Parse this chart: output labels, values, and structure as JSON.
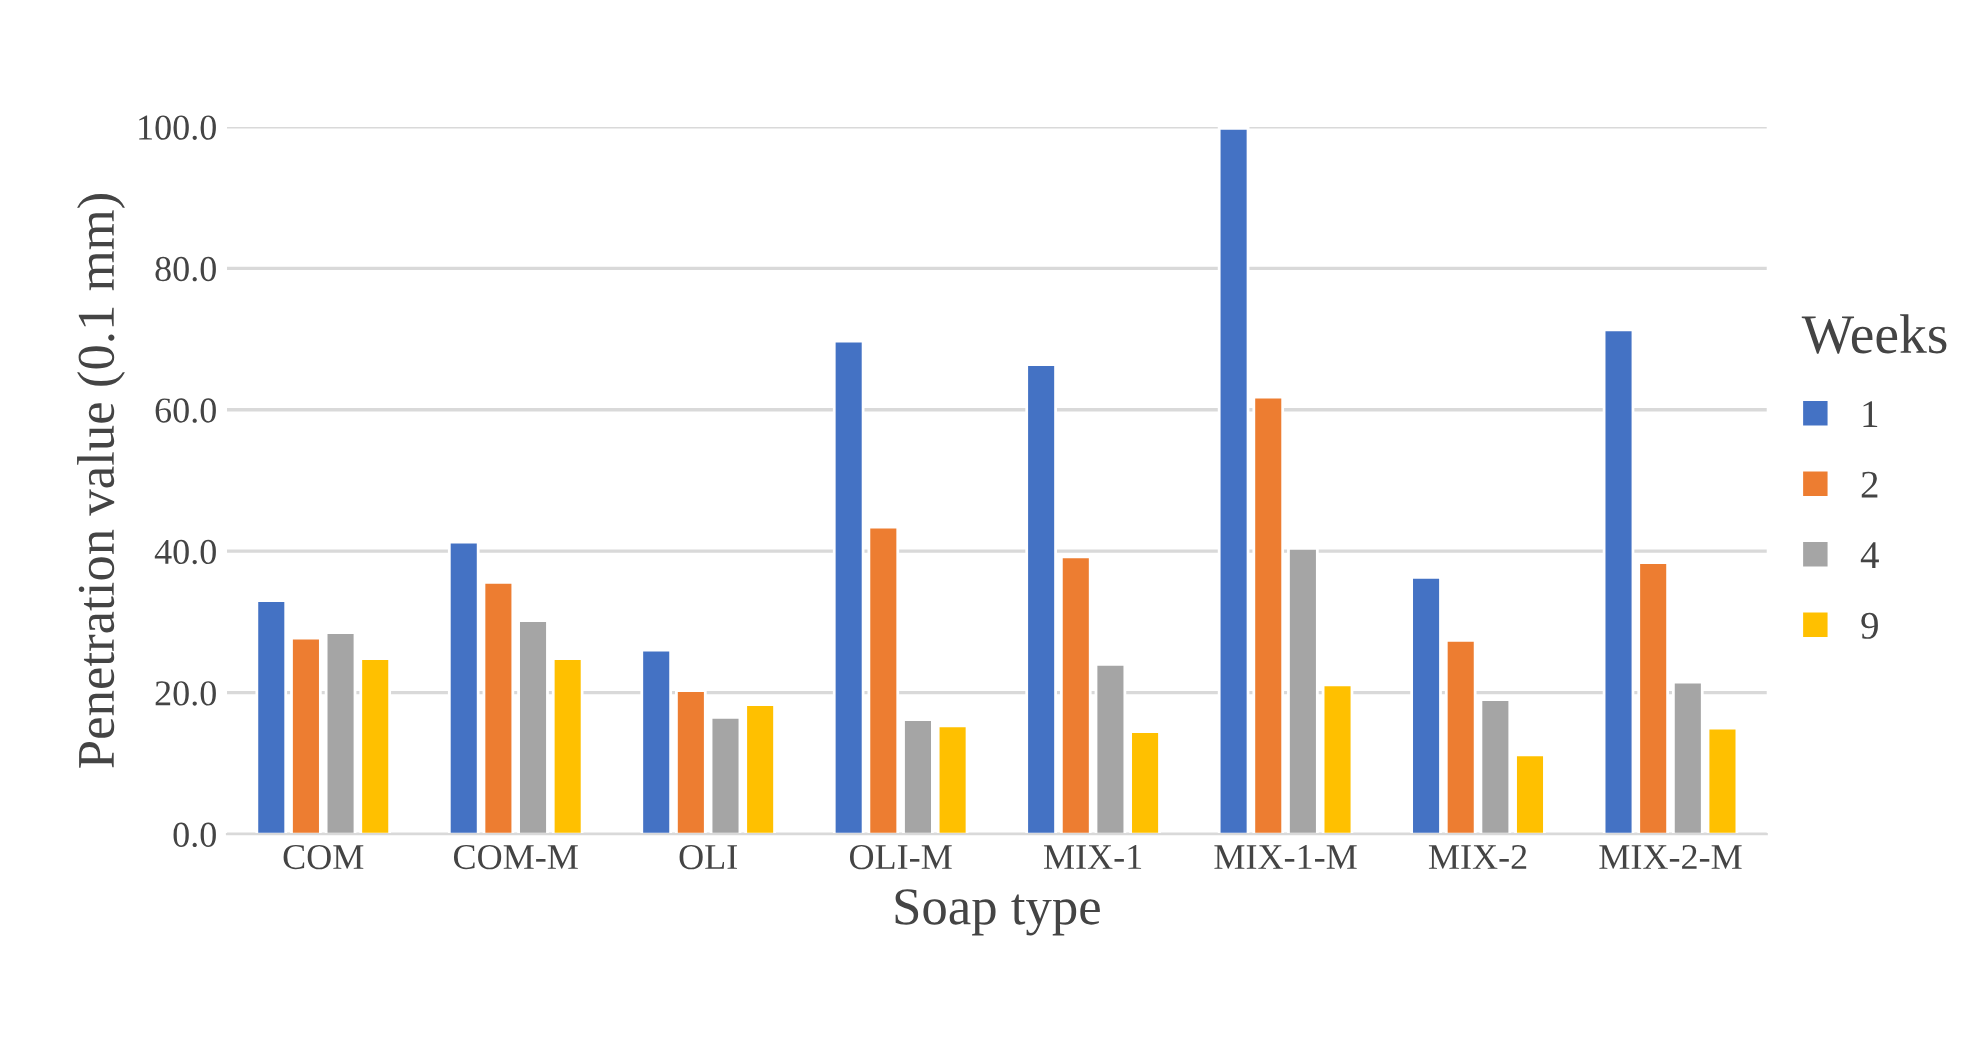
{
  "chart_data": {
    "type": "bar",
    "xlabel": "Soap type",
    "ylabel": "Penetration value (0.1 mm)",
    "legend_title": "Weeks",
    "categories": [
      "COM",
      "COM-M",
      "OLI",
      "OLI-M",
      "MIX-1",
      "MIX-1-M",
      "MIX-2",
      "MIX-2-M"
    ],
    "series": [
      {
        "name": "1",
        "color": "#4472c4",
        "values": [
          33.0,
          41.3,
          26.0,
          69.7,
          66.4,
          99.8,
          36.3,
          71.3
        ]
      },
      {
        "name": "2",
        "color": "#ed7d31",
        "values": [
          27.7,
          35.6,
          20.3,
          43.4,
          39.2,
          61.8,
          27.4,
          38.4
        ]
      },
      {
        "name": "4",
        "color": "#a5a5a5",
        "values": [
          28.5,
          30.2,
          16.5,
          16.2,
          24.0,
          40.4,
          19.0,
          21.5
        ]
      },
      {
        "name": "9",
        "color": "#ffc000",
        "values": [
          24.8,
          24.8,
          18.3,
          15.3,
          14.5,
          21.1,
          11.2,
          15.0
        ]
      }
    ],
    "ylim": [
      0,
      100
    ],
    "yticks": [
      {
        "value": 0,
        "label": "0.0"
      },
      {
        "value": 20,
        "label": "20.0"
      },
      {
        "value": 40,
        "label": "40.0"
      },
      {
        "value": 60,
        "label": "60.0"
      },
      {
        "value": 80,
        "label": "80.0"
      },
      {
        "value": 100,
        "label": "100.0"
      }
    ],
    "grid": "y",
    "legend": "right"
  }
}
